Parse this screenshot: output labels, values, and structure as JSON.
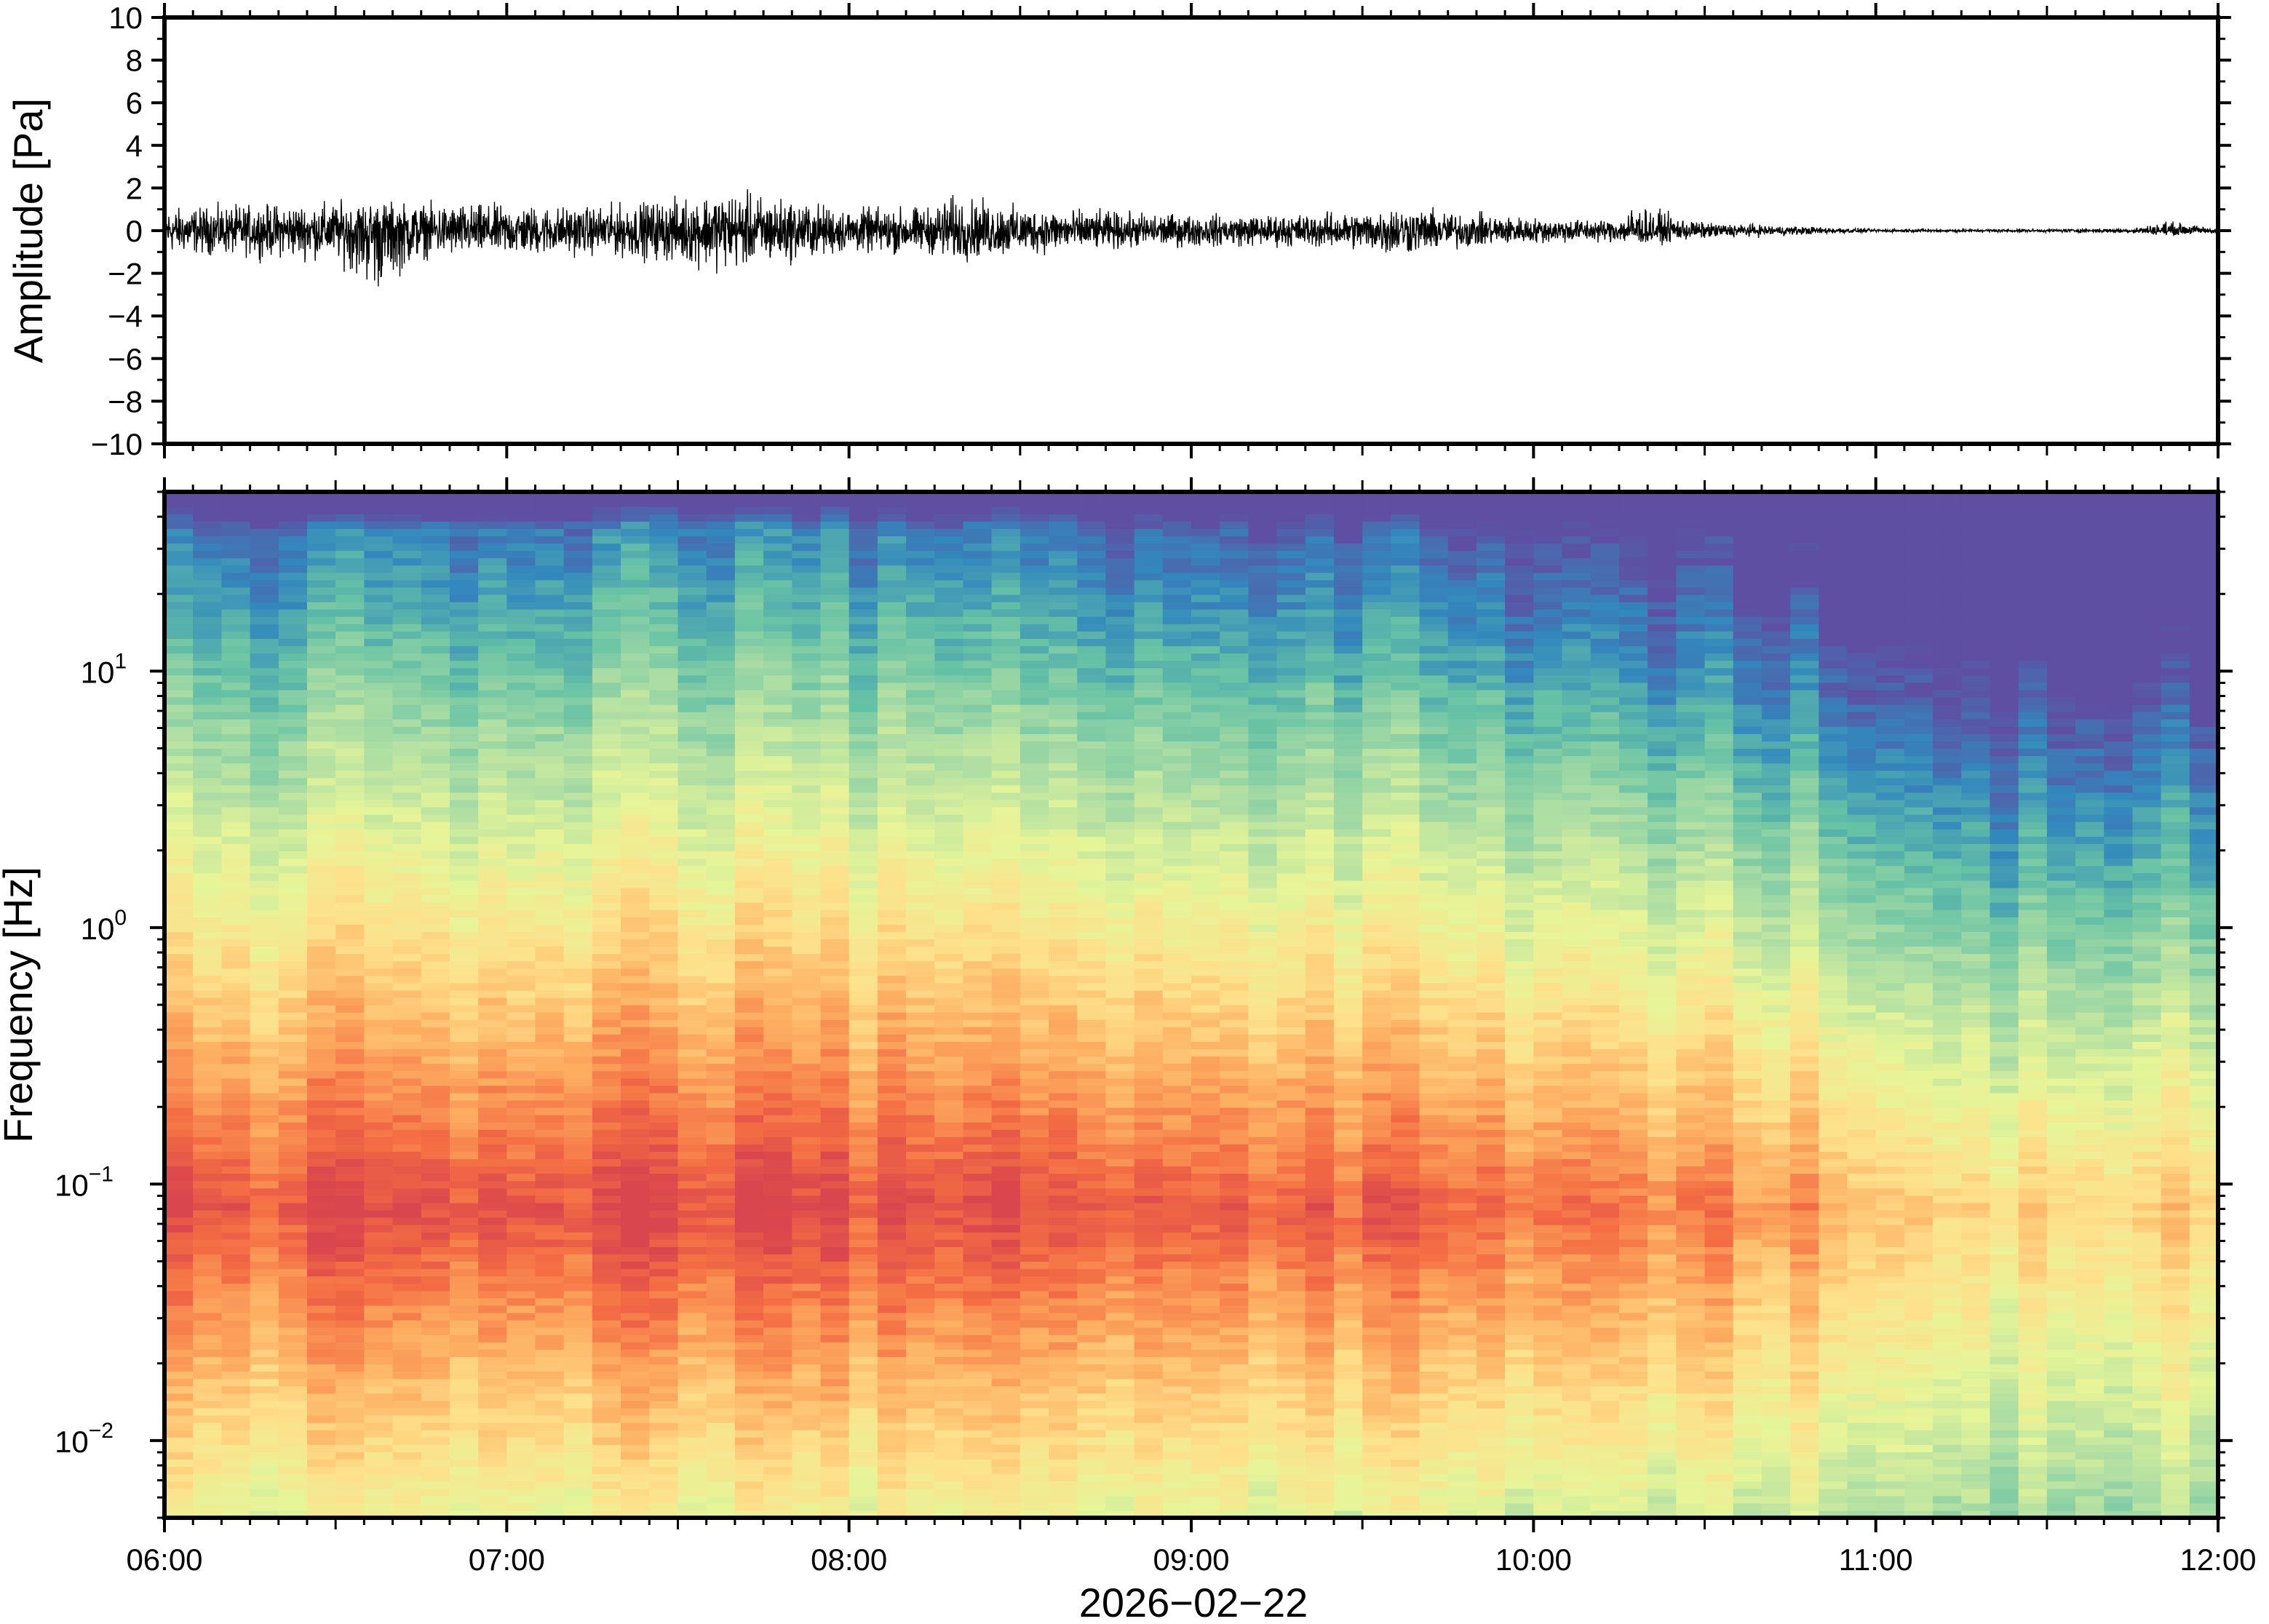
{
  "chart_data": [
    {
      "type": "line",
      "panel": "waveform",
      "ylabel": "Amplitude [Pa]",
      "ylim": [
        -10,
        10
      ],
      "yticks": [
        -10,
        -8,
        -6,
        -4,
        -2,
        0,
        2,
        4,
        6,
        8,
        10
      ],
      "ytick_labels": [
        "−10",
        "−8",
        "−6",
        "−4",
        "−2",
        "0",
        "2",
        "4",
        "6",
        "8",
        "10"
      ],
      "line_color": "#000000",
      "series": [
        {
          "x": [
            "06:00",
            "06:15",
            "06:30",
            "06:37",
            "06:45",
            "07:00",
            "07:15",
            "07:30",
            "07:37",
            "07:45",
            "08:00",
            "08:15",
            "08:17",
            "08:30",
            "08:45",
            "09:00",
            "09:15",
            "09:30",
            "09:35",
            "09:45",
            "10:00",
            "10:15",
            "10:17",
            "10:30",
            "10:45",
            "11:00",
            "11:15",
            "11:30",
            "11:45",
            "11:51",
            "12:00"
          ],
          "envelope_upper": [
            1.4,
            1.6,
            1.8,
            1.9,
            1.7,
            1.6,
            1.5,
            2.0,
            2.6,
            2.2,
            1.4,
            1.5,
            2.2,
            1.5,
            1.2,
            1.0,
            1.0,
            1.2,
            1.6,
            1.2,
            0.8,
            0.7,
            1.6,
            0.5,
            0.3,
            0.1,
            0.1,
            0.1,
            0.15,
            0.6,
            0.15
          ],
          "envelope_lower": [
            -1.4,
            -1.6,
            -1.8,
            -3.8,
            -1.7,
            -1.6,
            -1.5,
            -2.0,
            -2.4,
            -2.2,
            -1.4,
            -1.5,
            -2.0,
            -1.5,
            -1.2,
            -1.0,
            -1.0,
            -1.2,
            -1.6,
            -1.2,
            -0.8,
            -0.7,
            -1.0,
            -0.5,
            -0.3,
            -0.1,
            -0.1,
            -0.1,
            -0.15,
            -0.3,
            -0.15
          ]
        }
      ]
    },
    {
      "type": "heatmap",
      "panel": "spectrogram",
      "ylabel": "Frequency [Hz]",
      "xlabel": "2026−02−22",
      "y_scale": "log",
      "ylim": [
        0.005,
        50
      ],
      "yticks": [
        {
          "base": "10",
          "exp": "−2",
          "value": 0.01
        },
        {
          "base": "10",
          "exp": "−1",
          "value": 0.1
        },
        {
          "base": "10",
          "exp": "0",
          "value": 1
        },
        {
          "base": "10",
          "exp": "1",
          "value": 10
        }
      ],
      "xlim": [
        "06:00",
        "12:00"
      ],
      "xtick_labels": [
        "06:00",
        "07:00",
        "08:00",
        "09:00",
        "10:00",
        "11:00",
        "12:00"
      ],
      "colormap": "spectral (low: blue, high: red)",
      "colors": [
        "#5e4fa2",
        "#3288bd",
        "#66c2a5",
        "#abdda4",
        "#e6f598",
        "#fee08b",
        "#fdae61",
        "#f46d43",
        "#d53e4f"
      ],
      "time_profile": {
        "x_hours": [
          6.0,
          6.5,
          7.0,
          7.5,
          8.0,
          8.5,
          9.0,
          9.5,
          10.0,
          10.5,
          10.8,
          11.0,
          11.3,
          11.5,
          12.0
        ],
        "relative_level": [
          0.85,
          0.9,
          0.9,
          0.95,
          0.9,
          0.85,
          0.8,
          0.85,
          0.75,
          0.65,
          0.6,
          0.3,
          0.2,
          0.25,
          0.3
        ]
      },
      "spectral_peak_hz": 0.08
    }
  ]
}
